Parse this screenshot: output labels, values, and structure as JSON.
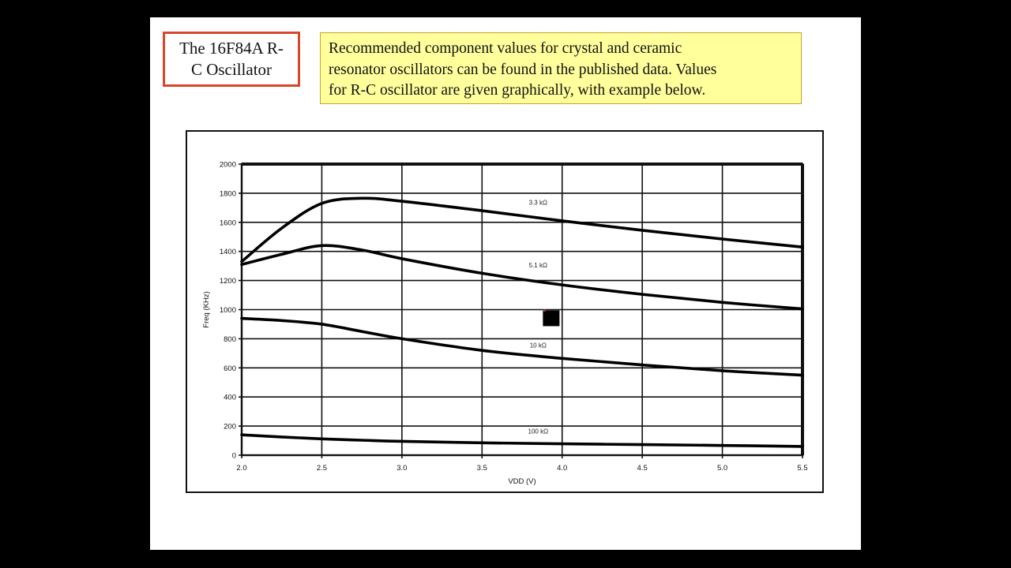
{
  "slide": {
    "title": "The 16F84A R-C Oscillator",
    "title_lines": [
      "The 16F84A R-",
      "C Oscillator"
    ],
    "note": "Recommended component values for crystal and ceramic resonator oscillators can be found in the published data. Values for R-C oscillator are given graphically, with example below.",
    "note_lines": [
      "Recommended component values for crystal and ceramic",
      "resonator oscillators can be found in the published data. Values",
      "for R-C oscillator are given graphically, with example below."
    ],
    "colors": {
      "title_border": "#d9472b",
      "note_bg": "#ffff9c",
      "note_border": "#c9a227",
      "background": "#000000",
      "slide": "#ffffff"
    }
  },
  "chart_data": {
    "type": "line",
    "title": "",
    "xlabel": "VDD (V)",
    "ylabel": "Freq (KHz)",
    "xlim": [
      2.0,
      5.5
    ],
    "ylim": [
      0,
      2000
    ],
    "grid": true,
    "legend": "inline labels",
    "x_ticks": [
      "2.0",
      "2.5",
      "3.0",
      "3.5",
      "4.0",
      "4.5",
      "5.0",
      "5.5"
    ],
    "y_ticks": [
      "0",
      "200",
      "400",
      "600",
      "800",
      "1000",
      "1200",
      "1400",
      "1600",
      "1800",
      "2000"
    ],
    "x": [
      2.0,
      2.25,
      2.5,
      2.75,
      3.0,
      3.5,
      4.0,
      4.5,
      5.0,
      5.5
    ],
    "series": [
      {
        "name": "3.3 kΩ",
        "label_pos": [
          3.85,
          1720
        ],
        "values": [
          1330,
          1560,
          1730,
          1765,
          1745,
          1680,
          1610,
          1545,
          1485,
          1430
        ]
      },
      {
        "name": "5.1 kΩ",
        "label_pos": [
          3.85,
          1290
        ],
        "values": [
          1310,
          1380,
          1440,
          1410,
          1350,
          1250,
          1170,
          1105,
          1050,
          1005
        ]
      },
      {
        "name": "10 kΩ",
        "label_pos": [
          3.85,
          740
        ],
        "values": [
          940,
          925,
          900,
          850,
          800,
          720,
          665,
          620,
          580,
          550
        ]
      },
      {
        "name": "100 kΩ",
        "label_pos": [
          3.85,
          150
        ],
        "values": [
          140,
          125,
          112,
          103,
          95,
          85,
          78,
          73,
          67,
          60
        ]
      }
    ],
    "annotation": "small black square marker near (3.9, 950)"
  }
}
